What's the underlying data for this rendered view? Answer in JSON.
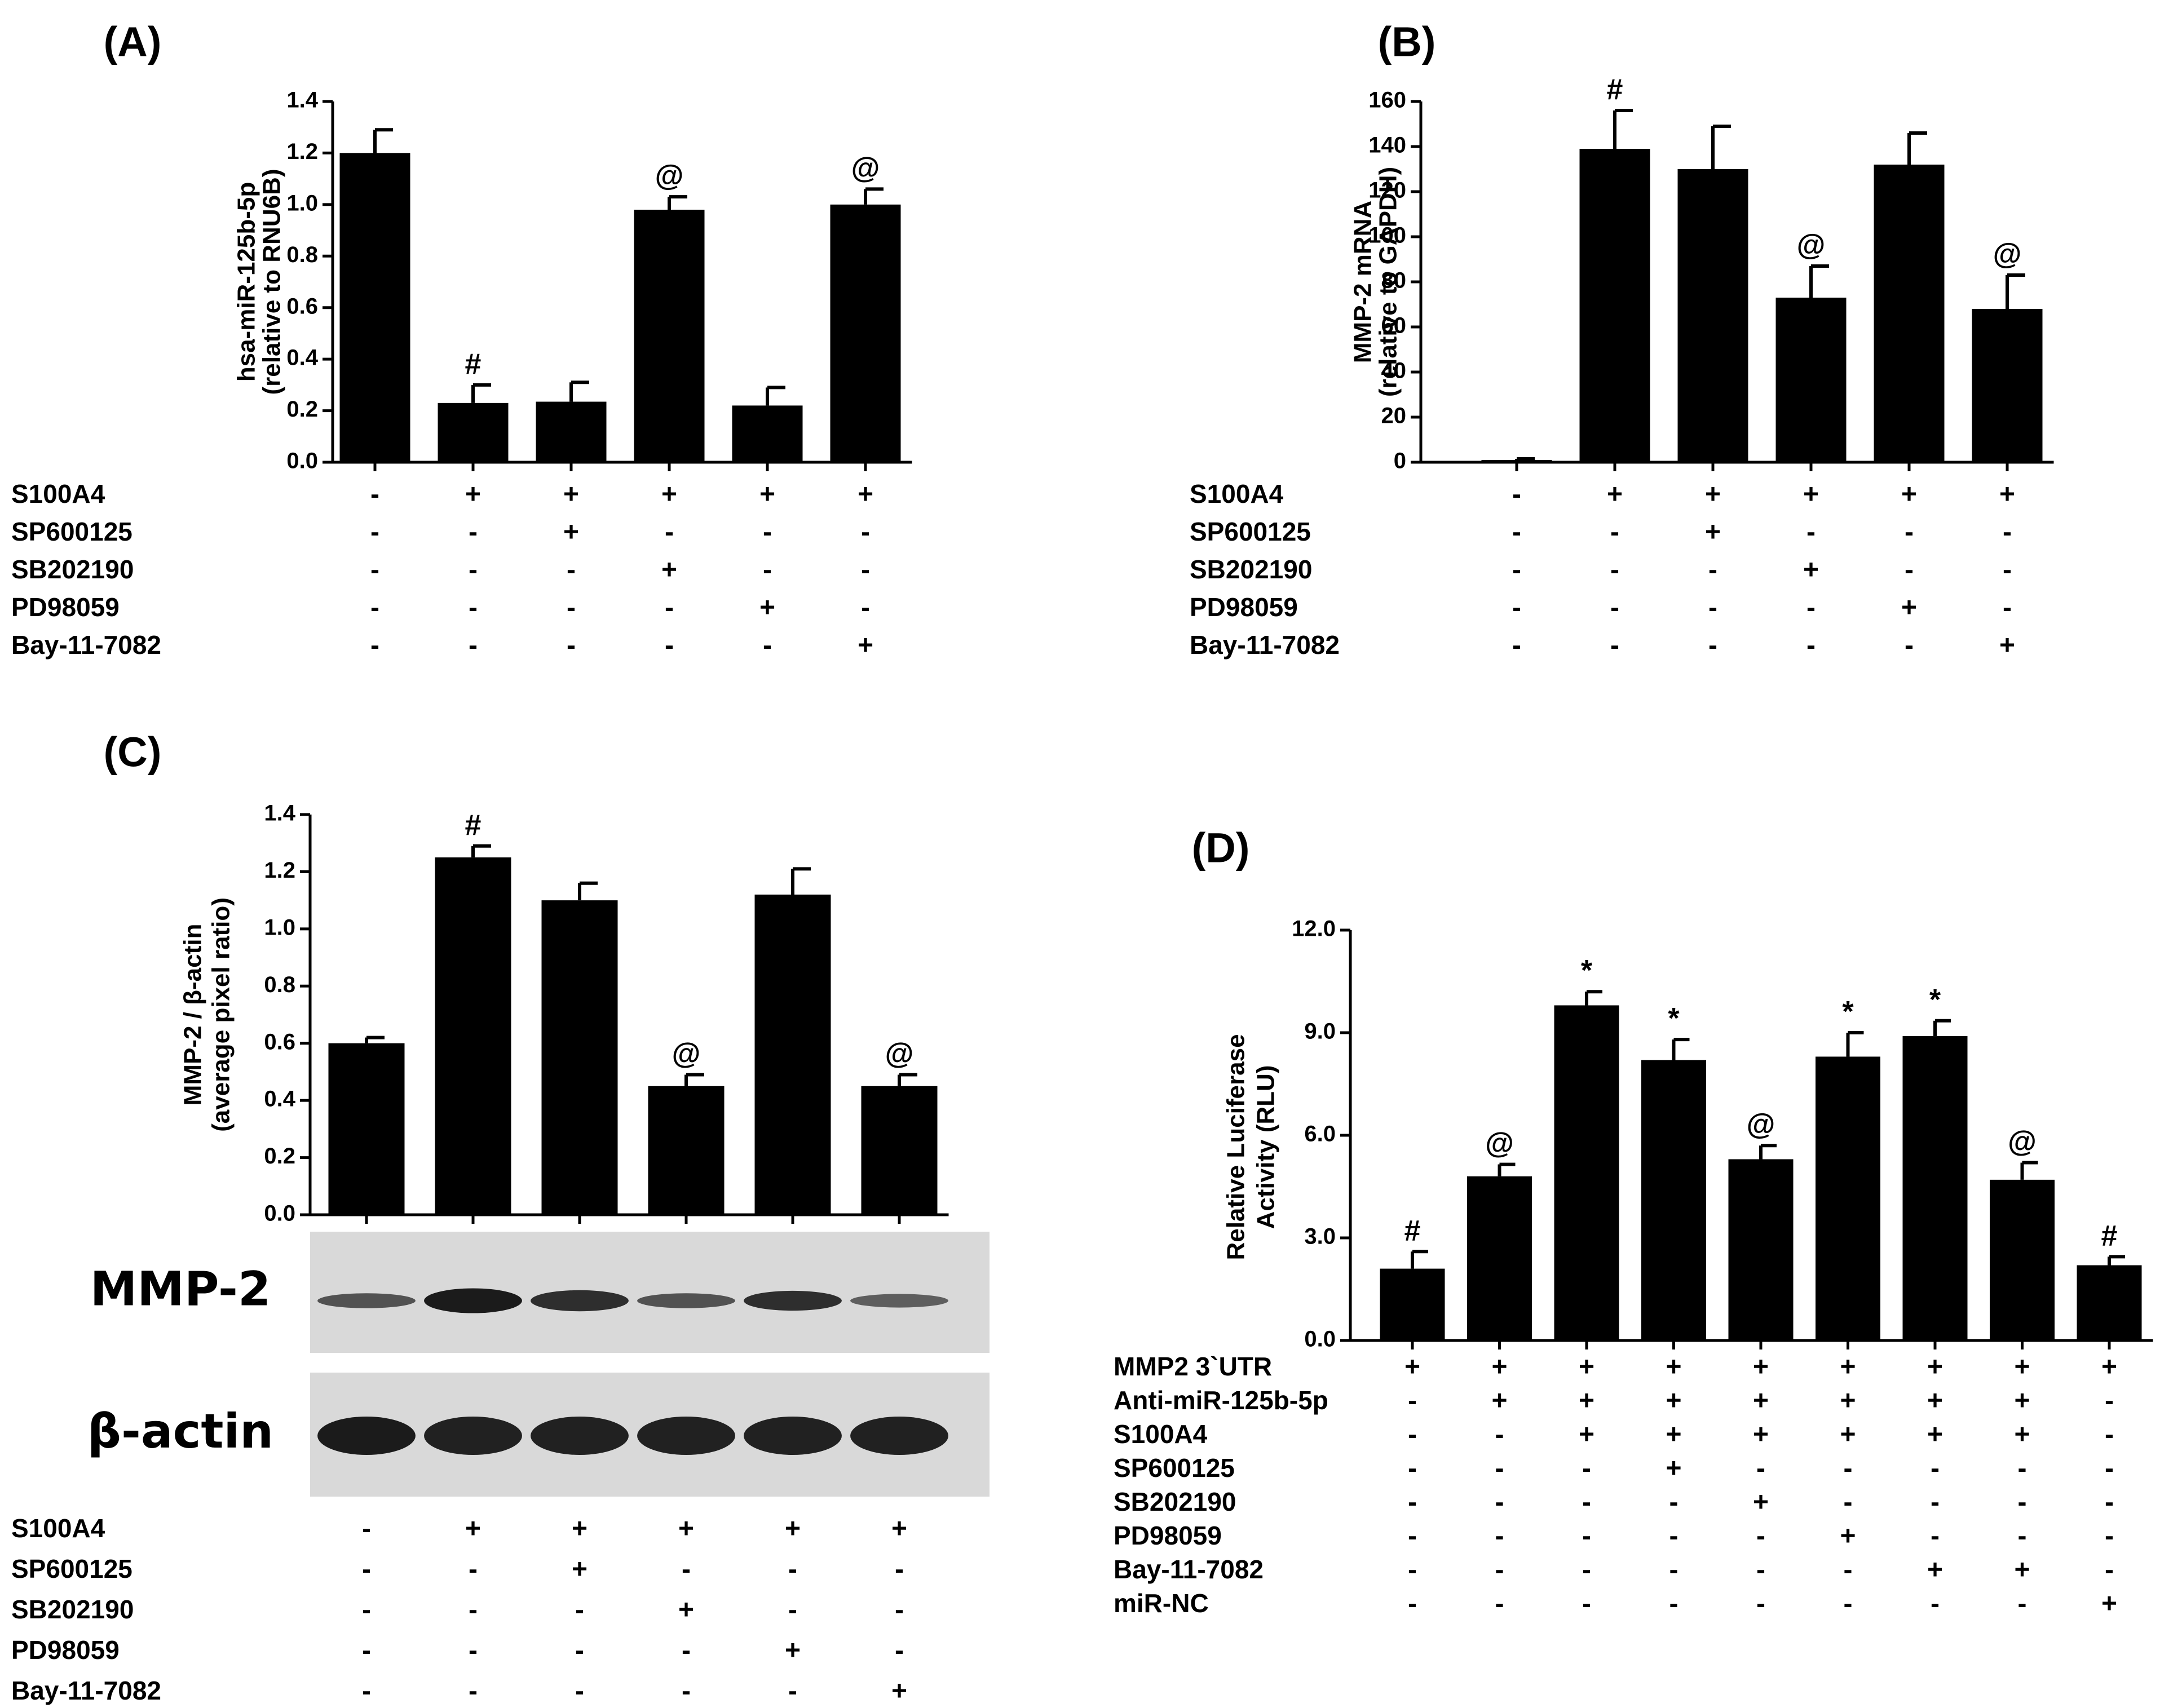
{
  "colors": {
    "bar": "#000000",
    "background": "#ffffff",
    "blot_bg": "#d9d9d9",
    "band": "#111111"
  },
  "chart_data": [
    {
      "panel": "(A)",
      "type": "bar",
      "ylabel": [
        "hsa-miR-125b-5p",
        "(relative to RNU6B)"
      ],
      "ylim": [
        0,
        1.4
      ],
      "yticks": [
        "0.0",
        "0.2",
        "0.4",
        "0.6",
        "0.8",
        "1.0",
        "1.2",
        "1.4"
      ],
      "values": [
        1.2,
        0.23,
        0.235,
        0.98,
        0.22,
        1.0
      ],
      "errors": [
        0.09,
        0.07,
        0.075,
        0.05,
        0.07,
        0.06
      ],
      "annotations": [
        "",
        "#",
        "",
        "@",
        "",
        "@"
      ],
      "rows": [
        {
          "label": "S100A4",
          "signs": [
            "-",
            "+",
            "+",
            "+",
            "+",
            "+"
          ]
        },
        {
          "label": "SP600125",
          "signs": [
            "-",
            "-",
            "+",
            "-",
            "-",
            "-"
          ]
        },
        {
          "label": "SB202190",
          "signs": [
            "-",
            "-",
            "-",
            "+",
            "-",
            "-"
          ]
        },
        {
          "label": "PD98059",
          "signs": [
            "-",
            "-",
            "-",
            "-",
            "+",
            "-"
          ]
        },
        {
          "label": "Bay-11-7082",
          "signs": [
            "-",
            "-",
            "-",
            "-",
            "-",
            "+"
          ]
        }
      ]
    },
    {
      "panel": "(B)",
      "type": "bar",
      "ylabel": [
        "MMP-2 mRNA",
        "(relative to GAPDH)"
      ],
      "ylim": [
        0,
        160
      ],
      "yticks": [
        "0",
        "20",
        "40",
        "60",
        "80",
        "100",
        "120",
        "140",
        "160"
      ],
      "values": [
        1,
        139,
        130,
        73,
        132,
        68
      ],
      "errors": [
        0.5,
        17,
        19,
        14,
        14,
        15
      ],
      "annotations": [
        "",
        "#",
        "",
        "@",
        "",
        "@"
      ],
      "rows": [
        {
          "label": "S100A4",
          "signs": [
            "-",
            "+",
            "+",
            "+",
            "+",
            "+"
          ]
        },
        {
          "label": "SP600125",
          "signs": [
            "-",
            "-",
            "+",
            "-",
            "-",
            "-"
          ]
        },
        {
          "label": "SB202190",
          "signs": [
            "-",
            "-",
            "-",
            "+",
            "-",
            "-"
          ]
        },
        {
          "label": "PD98059",
          "signs": [
            "-",
            "-",
            "-",
            "-",
            "+",
            "-"
          ]
        },
        {
          "label": "Bay-11-7082",
          "signs": [
            "-",
            "-",
            "-",
            "-",
            "-",
            "+"
          ]
        }
      ]
    },
    {
      "panel": "(C)",
      "type": "bar",
      "ylabel": [
        "MMP-2 / β-actin",
        "(average pixel ratio)"
      ],
      "ylim": [
        0,
        1.4
      ],
      "yticks": [
        "0.0",
        "0.2",
        "0.4",
        "0.6",
        "0.8",
        "1.0",
        "1.2",
        "1.4"
      ],
      "values": [
        0.6,
        1.25,
        1.1,
        0.45,
        1.12,
        0.45
      ],
      "errors": [
        0.02,
        0.04,
        0.06,
        0.04,
        0.09,
        0.04
      ],
      "annotations": [
        "",
        "#",
        "",
        "@",
        "",
        "@"
      ],
      "blots": [
        {
          "label": "MMP-2",
          "intensity": [
            0.55,
            1.0,
            0.85,
            0.55,
            0.85,
            0.45
          ],
          "thickness": [
            0.6,
            1.0,
            0.85,
            0.6,
            0.8,
            0.55
          ]
        },
        {
          "label": "β-actin",
          "intensity": [
            1.0,
            0.95,
            0.95,
            0.95,
            0.95,
            0.95
          ],
          "thickness": [
            1.0,
            1.0,
            1.0,
            1.0,
            1.0,
            1.0
          ]
        }
      ],
      "rows": [
        {
          "label": "S100A4",
          "signs": [
            "-",
            "+",
            "+",
            "+",
            "+",
            "+"
          ]
        },
        {
          "label": "SP600125",
          "signs": [
            "-",
            "-",
            "+",
            "-",
            "-",
            "-"
          ]
        },
        {
          "label": "SB202190",
          "signs": [
            "-",
            "-",
            "-",
            "+",
            "-",
            "-"
          ]
        },
        {
          "label": "PD98059",
          "signs": [
            "-",
            "-",
            "-",
            "-",
            "+",
            "-"
          ]
        },
        {
          "label": "Bay-11-7082",
          "signs": [
            "-",
            "-",
            "-",
            "-",
            "-",
            "+"
          ]
        }
      ]
    },
    {
      "panel": "(D)",
      "type": "bar",
      "ylabel": [
        "Relative Luciferase",
        "Activity (RLU)"
      ],
      "ylim": [
        0,
        12
      ],
      "yticks": [
        "0.0",
        "3.0",
        "6.0",
        "9.0",
        "12.0"
      ],
      "values": [
        2.1,
        4.8,
        9.8,
        8.2,
        5.3,
        8.3,
        8.9,
        4.7,
        2.2
      ],
      "errors": [
        0.5,
        0.35,
        0.4,
        0.6,
        0.4,
        0.7,
        0.45,
        0.5,
        0.25
      ],
      "annotations": [
        "#",
        "@",
        "*",
        "*",
        "@",
        "*",
        "*",
        "@",
        "#"
      ],
      "rows": [
        {
          "label": "MMP2 3`UTR",
          "signs": [
            "+",
            "+",
            "+",
            "+",
            "+",
            "+",
            "+",
            "+",
            "+"
          ]
        },
        {
          "label": "Anti-miR-125b-5p",
          "signs": [
            "-",
            "+",
            "+",
            "+",
            "+",
            "+",
            "+",
            "+",
            "-"
          ]
        },
        {
          "label": "S100A4",
          "signs": [
            "-",
            "-",
            "+",
            "+",
            "+",
            "+",
            "+",
            "+",
            "-"
          ]
        },
        {
          "label": "SP600125",
          "signs": [
            "-",
            "-",
            "-",
            "+",
            "-",
            "-",
            "-",
            "-",
            "-"
          ]
        },
        {
          "label": "SB202190",
          "signs": [
            "-",
            "-",
            "-",
            "-",
            "+",
            "-",
            "-",
            "-",
            "-"
          ]
        },
        {
          "label": "PD98059",
          "signs": [
            "-",
            "-",
            "-",
            "-",
            "-",
            "+",
            "-",
            "-",
            "-"
          ]
        },
        {
          "label": "Bay-11-7082",
          "signs": [
            "-",
            "-",
            "-",
            "-",
            "-",
            "-",
            "+",
            "+",
            "-"
          ]
        },
        {
          "label": "miR-NC",
          "signs": [
            "-",
            "-",
            "-",
            "-",
            "-",
            "-",
            "-",
            "-",
            "+"
          ]
        }
      ]
    }
  ]
}
